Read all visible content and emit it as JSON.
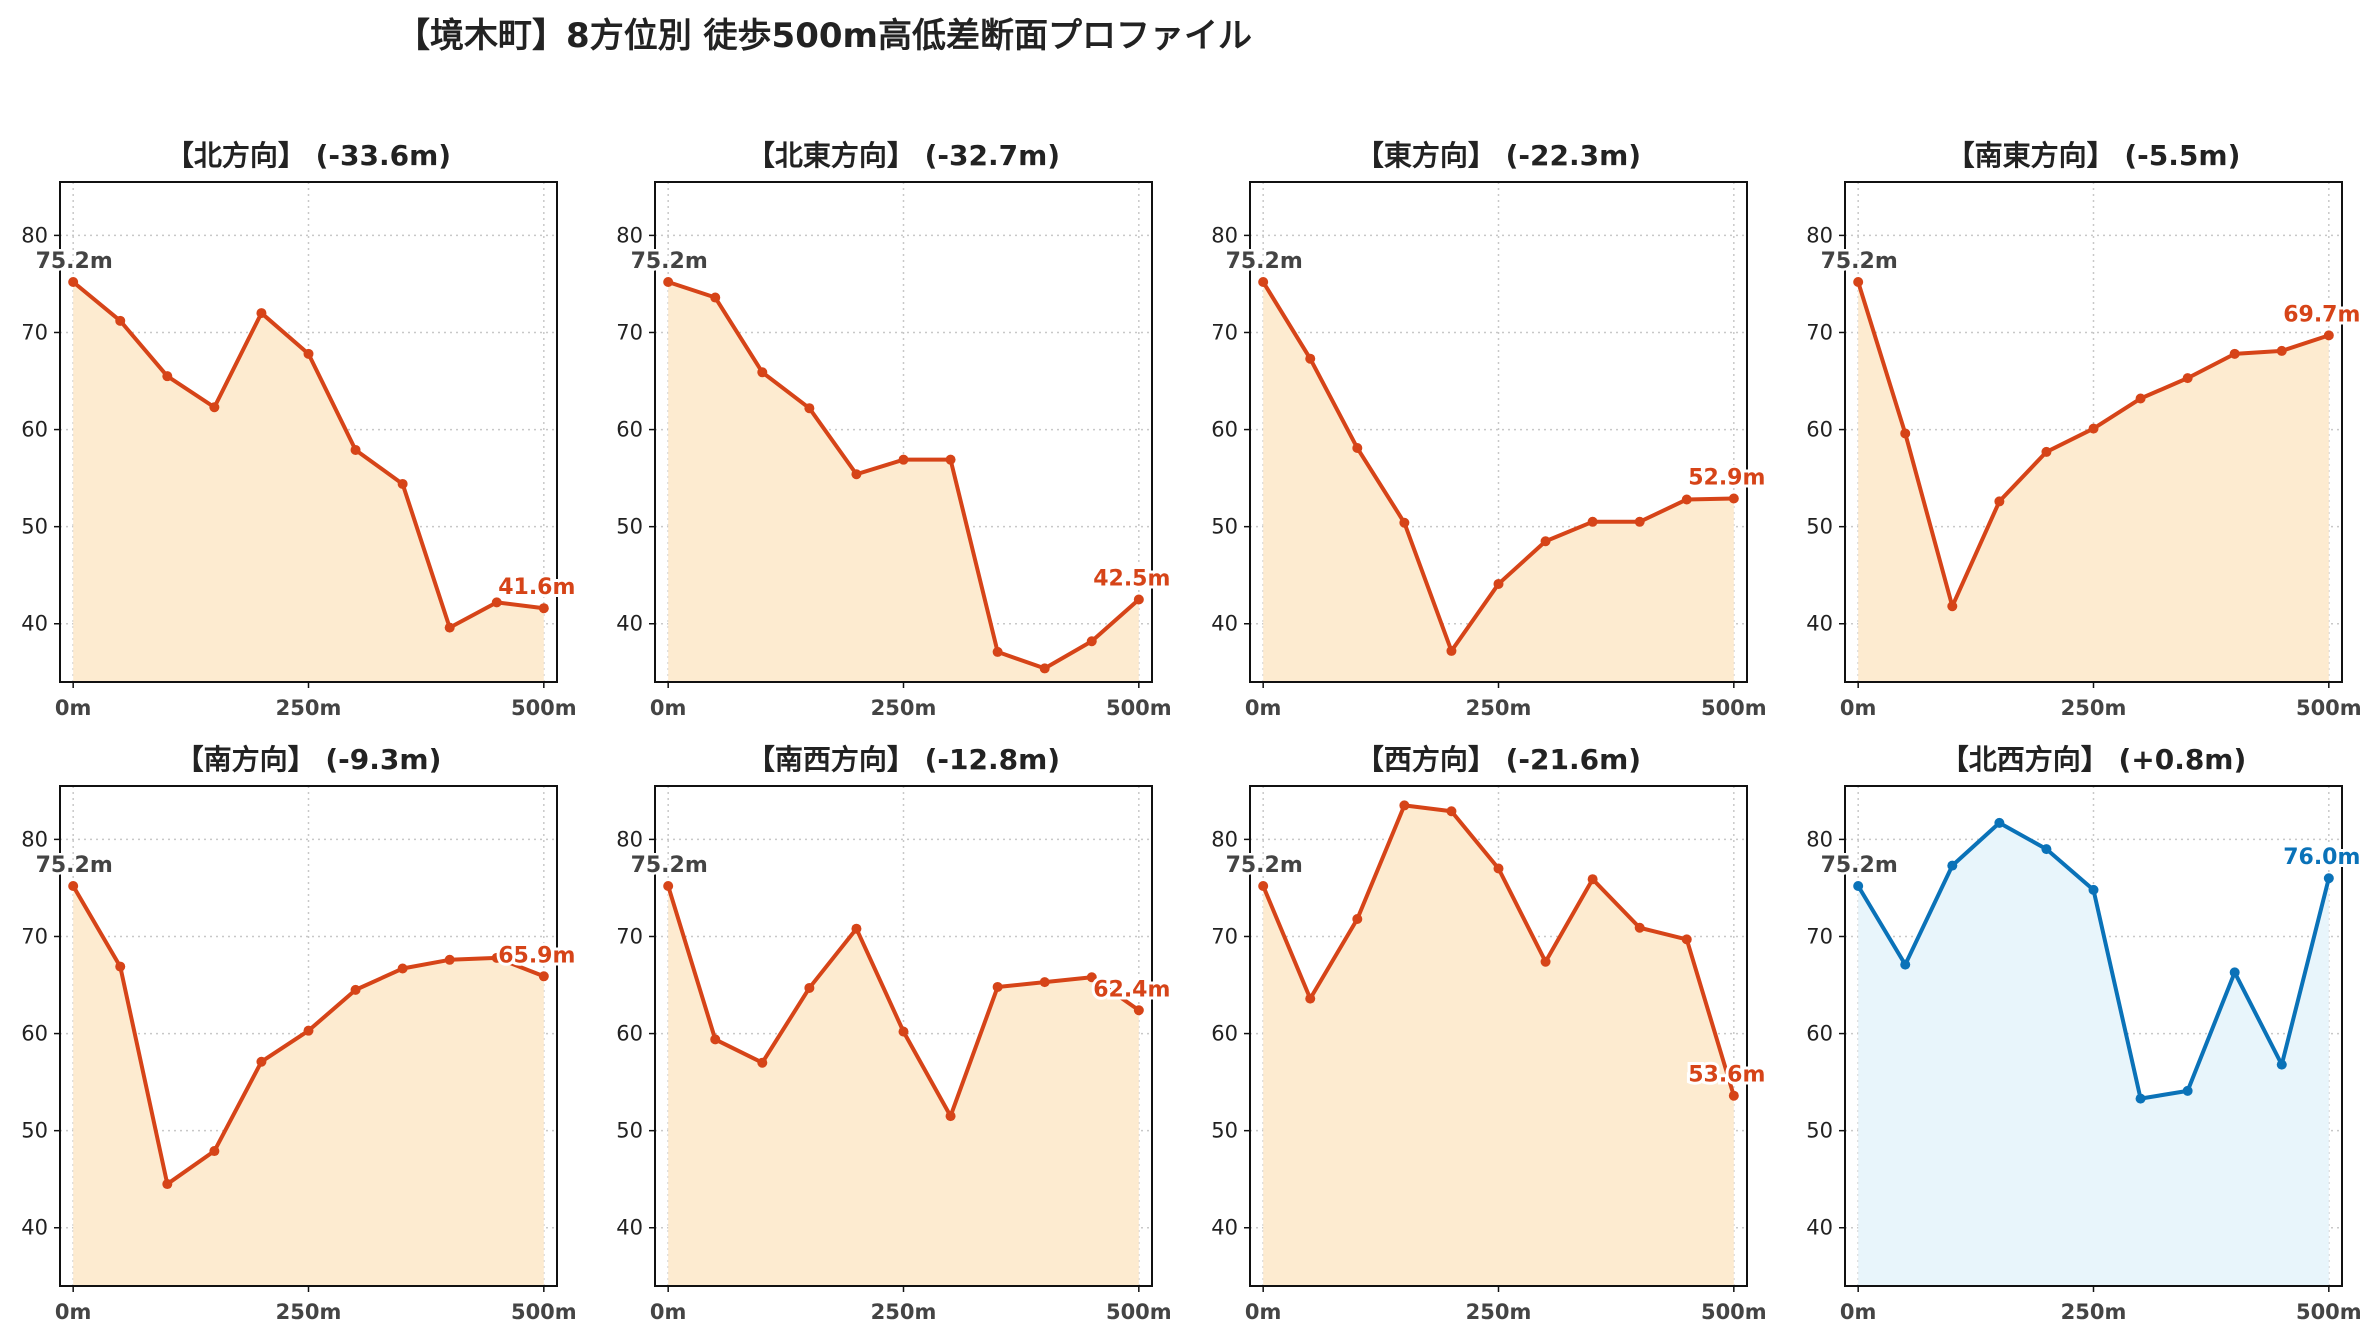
{
  "title": "【境木町】8方位別 徒歩500m高低差断面プロファイル",
  "colors": {
    "loss_line": "#d64418",
    "loss_fill": "#fdebd0",
    "gain_line": "#0a72b8",
    "gain_fill": "#e8f5fb",
    "start_label": "#444444",
    "grid": "#c8c8c8"
  },
  "chart_data": [
    {
      "type": "area",
      "title": "【北方向】 (-33.6m)",
      "trend": "loss",
      "x": [
        0,
        50,
        100,
        150,
        200,
        250,
        300,
        350,
        400,
        450,
        500
      ],
      "y": [
        75.2,
        71.2,
        65.5,
        62.3,
        72.0,
        67.8,
        57.9,
        54.4,
        39.6,
        42.2,
        41.6
      ],
      "start_label": "75.2m",
      "end_label": "41.6m",
      "x_ticks": [
        "0m",
        "250m",
        "500m"
      ],
      "y_ticks": [
        40,
        50,
        60,
        70,
        80
      ],
      "xlim": [
        -14,
        514
      ],
      "ylim": [
        34,
        85.5
      ],
      "grid": true
    },
    {
      "type": "area",
      "title": "【北東方向】 (-32.7m)",
      "trend": "loss",
      "x": [
        0,
        50,
        100,
        150,
        200,
        250,
        300,
        350,
        400,
        450,
        500
      ],
      "y": [
        75.2,
        73.6,
        65.9,
        62.2,
        55.4,
        56.9,
        56.9,
        37.1,
        35.4,
        38.2,
        42.5
      ],
      "start_label": "75.2m",
      "end_label": "42.5m",
      "x_ticks": [
        "0m",
        "250m",
        "500m"
      ],
      "y_ticks": [
        40,
        50,
        60,
        70,
        80
      ],
      "xlim": [
        -14,
        514
      ],
      "ylim": [
        34,
        85.5
      ],
      "grid": true
    },
    {
      "type": "area",
      "title": "【東方向】 (-22.3m)",
      "trend": "loss",
      "x": [
        0,
        50,
        100,
        150,
        200,
        250,
        300,
        350,
        400,
        450,
        500
      ],
      "y": [
        75.2,
        67.3,
        58.1,
        50.4,
        37.2,
        44.1,
        48.5,
        50.5,
        50.5,
        52.8,
        52.9
      ],
      "start_label": "75.2m",
      "end_label": "52.9m",
      "x_ticks": [
        "0m",
        "250m",
        "500m"
      ],
      "y_ticks": [
        40,
        50,
        60,
        70,
        80
      ],
      "xlim": [
        -14,
        514
      ],
      "ylim": [
        34,
        85.5
      ],
      "grid": true
    },
    {
      "type": "area",
      "title": "【南東方向】 (-5.5m)",
      "trend": "loss",
      "x": [
        0,
        50,
        100,
        150,
        200,
        250,
        300,
        350,
        400,
        450,
        500
      ],
      "y": [
        75.2,
        59.6,
        41.8,
        52.6,
        57.7,
        60.1,
        63.2,
        65.3,
        67.8,
        68.1,
        69.7
      ],
      "start_label": "75.2m",
      "end_label": "69.7m",
      "x_ticks": [
        "0m",
        "250m",
        "500m"
      ],
      "y_ticks": [
        40,
        50,
        60,
        70,
        80
      ],
      "xlim": [
        -14,
        514
      ],
      "ylim": [
        34,
        85.5
      ],
      "grid": true
    },
    {
      "type": "area",
      "title": "【南方向】 (-9.3m)",
      "trend": "loss",
      "x": [
        0,
        50,
        100,
        150,
        200,
        250,
        300,
        350,
        400,
        450,
        500
      ],
      "y": [
        75.2,
        66.9,
        44.5,
        47.9,
        57.1,
        60.3,
        64.5,
        66.7,
        67.6,
        67.8,
        65.9
      ],
      "start_label": "75.2m",
      "end_label": "65.9m",
      "x_ticks": [
        "0m",
        "250m",
        "500m"
      ],
      "y_ticks": [
        40,
        50,
        60,
        70,
        80
      ],
      "xlim": [
        -14,
        514
      ],
      "ylim": [
        34,
        85.5
      ],
      "grid": true
    },
    {
      "type": "area",
      "title": "【南西方向】 (-12.8m)",
      "trend": "loss",
      "x": [
        0,
        50,
        100,
        150,
        200,
        250,
        300,
        350,
        400,
        450,
        500
      ],
      "y": [
        75.2,
        59.4,
        57.0,
        64.7,
        70.8,
        60.2,
        51.5,
        64.8,
        65.3,
        65.8,
        62.4
      ],
      "start_label": "75.2m",
      "end_label": "62.4m",
      "x_ticks": [
        "0m",
        "250m",
        "500m"
      ],
      "y_ticks": [
        40,
        50,
        60,
        70,
        80
      ],
      "xlim": [
        -14,
        514
      ],
      "ylim": [
        34,
        85.5
      ],
      "grid": true
    },
    {
      "type": "area",
      "title": "【西方向】 (-21.6m)",
      "trend": "loss",
      "x": [
        0,
        50,
        100,
        150,
        200,
        250,
        300,
        350,
        400,
        450,
        500
      ],
      "y": [
        75.2,
        63.6,
        71.8,
        83.5,
        82.9,
        77.0,
        67.4,
        75.9,
        70.9,
        69.7,
        53.6
      ],
      "start_label": "75.2m",
      "end_label": "53.6m",
      "x_ticks": [
        "0m",
        "250m",
        "500m"
      ],
      "y_ticks": [
        40,
        50,
        60,
        70,
        80
      ],
      "xlim": [
        -14,
        514
      ],
      "ylim": [
        34,
        85.5
      ],
      "grid": true
    },
    {
      "type": "area",
      "title": "【北西方向】 (+0.8m)",
      "trend": "gain",
      "x": [
        0,
        50,
        100,
        150,
        200,
        250,
        300,
        350,
        400,
        450,
        500
      ],
      "y": [
        75.2,
        67.1,
        77.3,
        81.7,
        79.0,
        74.8,
        53.3,
        54.1,
        66.3,
        56.8,
        76.0
      ],
      "start_label": "75.2m",
      "end_label": "76.0m",
      "x_ticks": [
        "0m",
        "250m",
        "500m"
      ],
      "y_ticks": [
        40,
        50,
        60,
        70,
        80
      ],
      "xlim": [
        -14,
        514
      ],
      "ylim": [
        34,
        85.5
      ],
      "grid": true
    }
  ]
}
